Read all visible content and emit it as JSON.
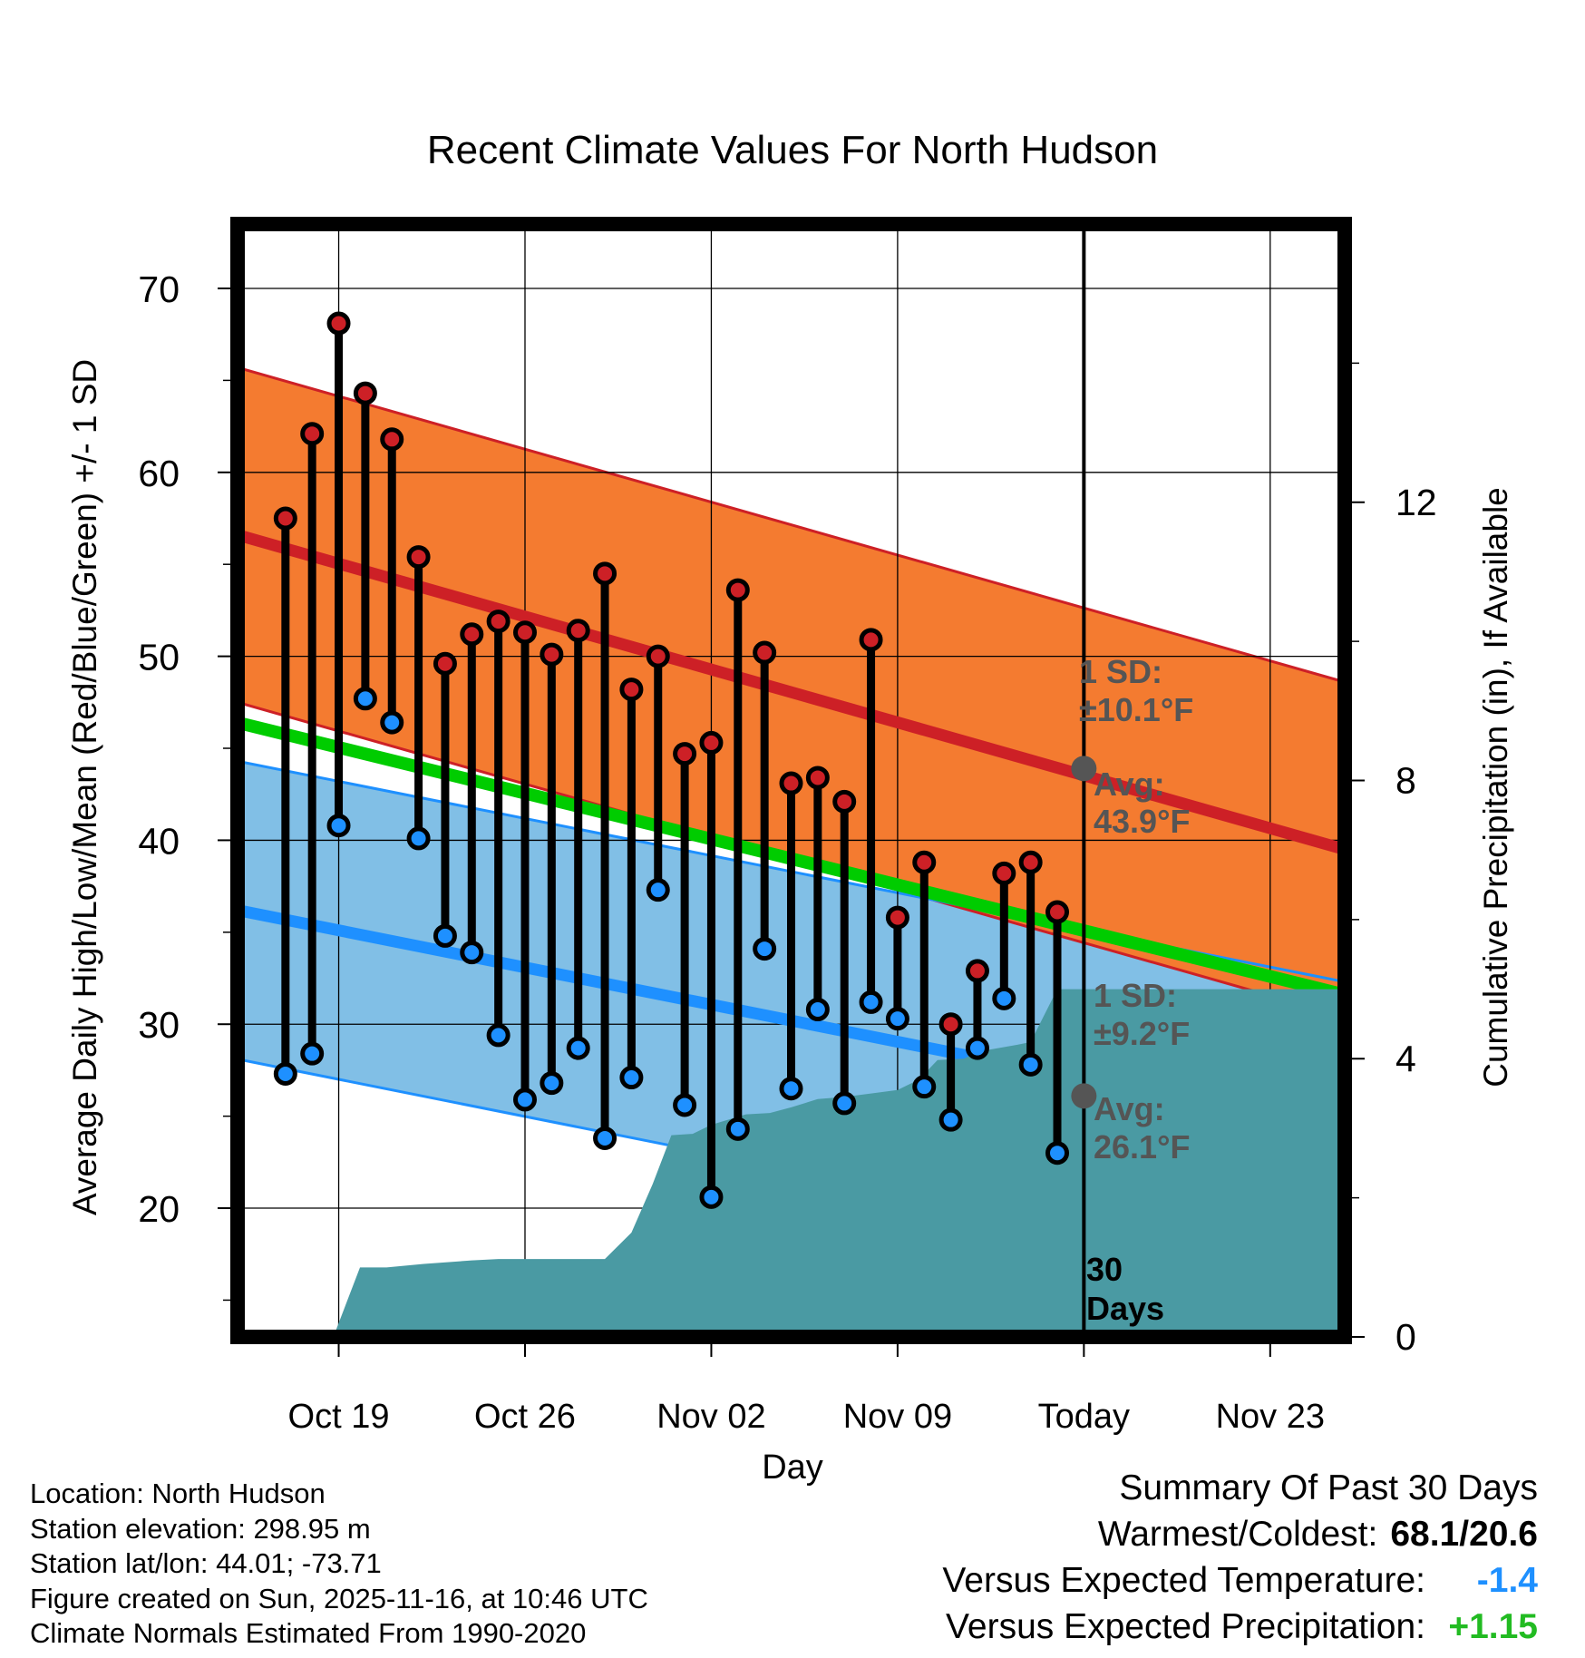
{
  "chart_data": {
    "type": "line",
    "title": "Recent Climate Values For North Hudson",
    "xlabel": "Day",
    "ylabel": "Average Daily High/Low/Mean (Red/Blue/Green) +/- 1 SD",
    "y2label": "Cumulative Precipitation (in), If Available",
    "x_tick_labels": [
      "Oct 19",
      "Oct 26",
      "Nov 02",
      "Nov 09",
      "Today",
      "Nov 23"
    ],
    "x_tick_days": [
      3,
      10,
      17,
      24,
      31,
      38
    ],
    "xlim": [
      -0.8,
      40.8
    ],
    "ylim": [
      13.0,
      73.5
    ],
    "y_ticks": [
      20,
      30,
      40,
      50,
      60,
      70
    ],
    "y2lim": [
      0,
      16
    ],
    "y2_ticks": [
      0,
      4,
      8,
      12
    ],
    "colors": {
      "high_band": "#f47b30",
      "high_line": "#cd2026",
      "low_band": "#81bfe6",
      "low_line": "#1e90ff",
      "mean_line": "#00cc00",
      "precip": "#4a9aa3",
      "crossover": "#8b1010",
      "marker_high": "#cd2026",
      "marker_low": "#1e90ff",
      "avg_dot": "#555555",
      "annotation": "#555555"
    },
    "normal_high": {
      "start": 56.6,
      "end": 39.5,
      "sd": 9.1
    },
    "normal_low": {
      "start": 36.2,
      "end": 24.2,
      "sd": 8.1
    },
    "normal_mean": {
      "start": 46.4,
      "end": 31.6
    },
    "days": [
      1,
      2,
      3,
      4,
      5,
      6,
      7,
      8,
      9,
      10,
      11,
      12,
      13,
      14,
      15,
      16,
      17,
      18,
      19,
      20,
      21,
      22,
      23,
      24,
      25,
      26,
      27,
      28,
      29,
      30
    ],
    "highs": [
      57.5,
      62.1,
      68.1,
      64.3,
      61.8,
      55.4,
      49.6,
      51.2,
      51.9,
      51.3,
      50.1,
      51.4,
      54.5,
      48.2,
      50.0,
      44.7,
      45.3,
      53.6,
      50.2,
      43.1,
      43.4,
      42.1,
      50.9,
      35.8,
      38.8,
      30.0,
      32.9,
      38.2,
      38.8,
      36.1
    ],
    "lows": [
      27.3,
      28.4,
      40.8,
      47.7,
      46.4,
      40.1,
      34.8,
      33.9,
      29.4,
      25.9,
      26.8,
      28.7,
      23.8,
      27.1,
      37.3,
      25.6,
      20.6,
      24.3,
      34.1,
      26.5,
      30.8,
      25.7,
      31.2,
      30.3,
      26.6,
      24.8,
      28.7,
      31.4,
      27.8,
      23.0
    ],
    "precip_x": [
      0,
      2.8,
      3.2,
      3.8,
      4.8,
      6.2,
      8.0,
      9.0,
      11.0,
      12.5,
      13.0,
      14.0,
      14.8,
      15.5,
      16.3,
      17.0,
      18.3,
      19.2,
      20.0,
      21.0,
      22.0,
      23.0,
      24.0,
      24.8,
      25.5,
      26.5,
      27.0,
      28.5,
      29.0,
      30.0,
      31.0,
      40.8
    ],
    "precip_y": [
      0,
      0,
      0.4,
      1.0,
      1.0,
      1.05,
      1.1,
      1.12,
      1.12,
      1.12,
      1.12,
      1.5,
      2.2,
      2.9,
      2.92,
      3.05,
      3.2,
      3.22,
      3.3,
      3.42,
      3.45,
      3.5,
      3.55,
      3.7,
      3.98,
      4.0,
      4.1,
      4.2,
      4.24,
      5.0,
      5.0,
      5.0
    ],
    "annotations": {
      "high_sd_label": "1 SD:",
      "high_sd_value": "±10.1°F",
      "high_avg_label": "Avg:",
      "high_avg_value": "43.9°F",
      "low_sd_label": "1 SD:",
      "low_sd_value": "±9.2°F",
      "low_avg_label": "Avg:",
      "low_avg_value": "26.1°F",
      "days_number": "30",
      "days_word": "Days"
    },
    "today_high_avg": 43.9,
    "today_low_avg": 26.1
  },
  "info": {
    "location": "Location: North Hudson",
    "elevation": "Station elevation: 298.95 m",
    "latlon": "Station lat/lon: 44.01; -73.71",
    "created": "Figure created on Sun, 2025-11-16, at 10:46 UTC",
    "normals": "Climate Normals Estimated From 1990-2020"
  },
  "summary": {
    "title": "Summary Of Past 30 Days",
    "warm_cold_label": "Warmest/Coldest:",
    "warm_cold_value": "68.1/20.6",
    "temp_label": "Versus Expected Temperature:",
    "temp_value": "-1.4",
    "temp_color": "#1e90ff",
    "precip_label": "Versus Expected Precipitation:",
    "precip_value": "+1.15",
    "precip_color": "#22bb22"
  }
}
